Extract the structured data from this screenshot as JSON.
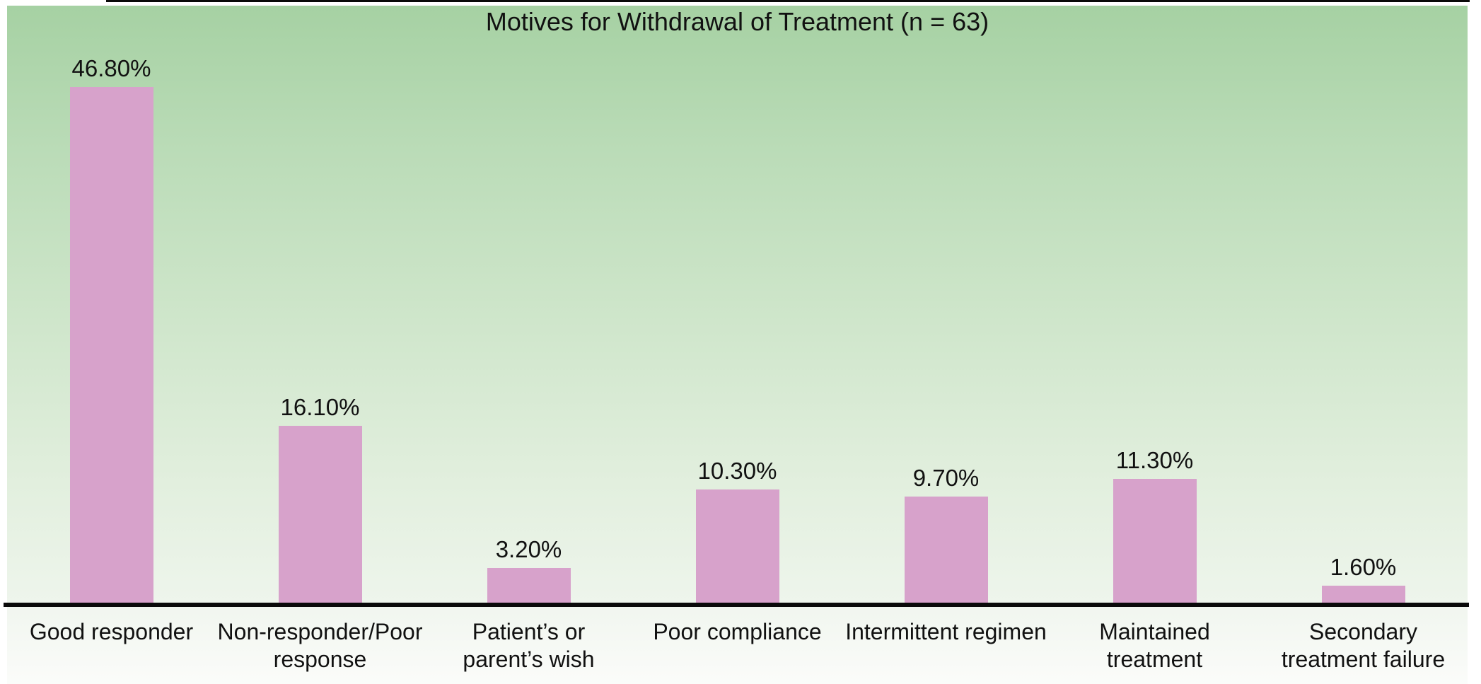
{
  "chart_data": {
    "type": "bar",
    "title": "Motives for Withdrawal of Treatment (n = 63)",
    "categories": [
      "Good responder",
      "Non-responder/Poor response",
      "Patient's or parent's wish",
      "Poor compliance",
      "Intermittent regimen",
      "Maintained treatment",
      "Secondary treatment failure"
    ],
    "tick_labels": [
      "Good responder",
      "Non-responder/Poor\nresponse",
      "Patient’s or\nparent’s wish",
      "Poor compliance",
      "Intermittent regimen",
      "Maintained\ntreatment",
      "Secondary\ntreatment failure"
    ],
    "values": [
      46.8,
      16.1,
      3.2,
      10.3,
      9.7,
      11.3,
      1.6
    ],
    "value_labels": [
      "46.80%",
      "16.10%",
      "3.20%",
      "10.30%",
      "9.70%",
      "11.30%",
      "1.60%"
    ],
    "xlabel": "",
    "ylabel": "",
    "ylim": [
      0,
      50
    ],
    "grid": false,
    "legend": "none",
    "bar_color": "#d7a2cb",
    "axis_color": "#0a0a0a",
    "background_gradient_top": "#a6d1a3",
    "background_gradient_bottom": "#eef5ec",
    "label_strip_color": "#f1f6ef"
  }
}
